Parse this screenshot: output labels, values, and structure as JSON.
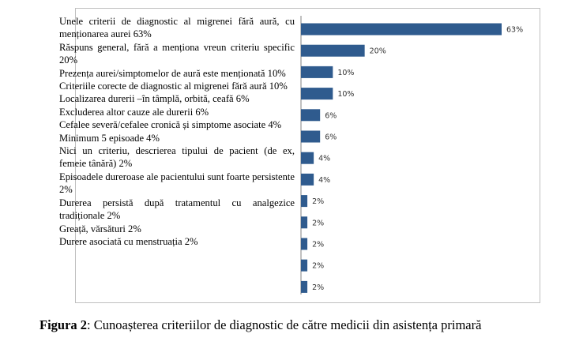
{
  "chart_data": {
    "type": "bar",
    "orientation": "horizontal",
    "categories": [
      "Unele criterii de diagnostic al migrenei fără aură, cu menționarea aurei 63%",
      "Răspuns general, fără a menționa vreun criteriu specific 20%",
      "Prezența aurei/simptomelor de aură este menționată 10%",
      "Criteriile corecte de diagnostic al migrenei fără aură 10%",
      "Localizarea durerii –în tâmplă, orbită, ceafă 6%",
      "Excluderea altor cauze ale durerii 6%",
      "Cefalee severă/cefalee cronică și simptome asociate 4%",
      "Minimum 5 episoade 4%",
      "Nici un criteriu, descrierea tipului de pacient (de ex, femeie tânără) 2%",
      "Episoadele dureroase ale pacientului sunt foarte persistente 2%",
      "Durerea persistă după tratamentul cu analgezice tradiționale 2%",
      "Greață, vărsături 2%",
      "Durere asociată cu menstruația 2%"
    ],
    "values": [
      63,
      20,
      10,
      10,
      6,
      6,
      4,
      4,
      2,
      2,
      2,
      2,
      2
    ],
    "value_labels": [
      "63%",
      "20%",
      "10%",
      "10%",
      "6%",
      "6%",
      "4%",
      "4%",
      "2%",
      "2%",
      "2%",
      "2%",
      "2%"
    ],
    "color": "#2f5b8e",
    "xlim": [
      0,
      63
    ],
    "caption_label": "Figura 2",
    "caption_text": ": Cunoașterea criteriilor de diagnostic de către medicii din asistența primară"
  }
}
